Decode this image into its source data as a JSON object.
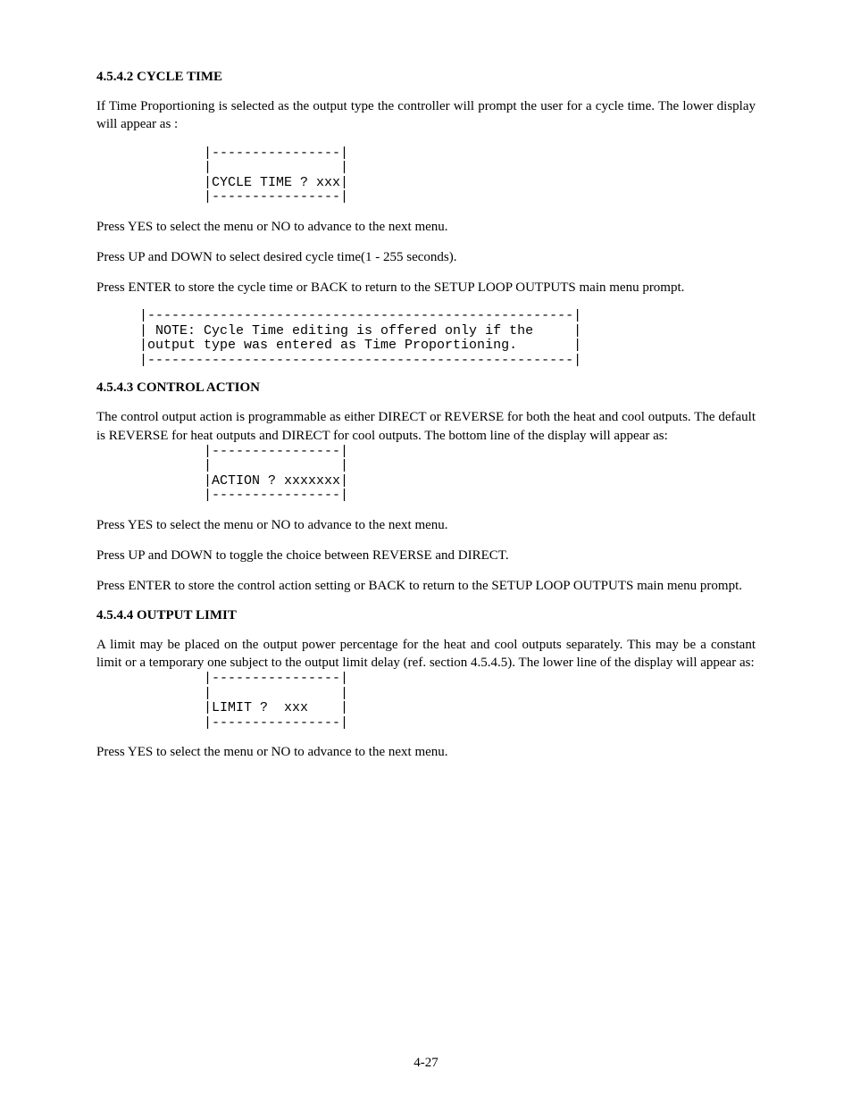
{
  "section1": {
    "heading": "4.5.4.2 CYCLE TIME",
    "para1": "If Time Proportioning is selected as the output type the controller will prompt the user for a cycle time. The lower display will appear as :",
    "display": "|----------------|\n|                |\n|CYCLE TIME ? xxx|\n|----------------|",
    "para2": "Press YES to select the menu or NO to advance to the next menu.",
    "para3": "Press UP and DOWN to select desired cycle time(1 - 255 seconds).",
    "para4": "Press ENTER to store the cycle time  or BACK to return to the SETUP LOOP OUTPUTS main menu prompt.",
    "note": "|-----------------------------------------------------|\n| NOTE: Cycle Time editing is offered only if the     |\n|output type was entered as Time Proportioning.       |\n|-----------------------------------------------------|"
  },
  "section2": {
    "heading": "4.5.4.3 CONTROL ACTION",
    "para1": "The control output action is programmable as either DIRECT or REVERSE for both the heat and cool outputs. The default is REVERSE for heat outputs and DIRECT for cool outputs. The bottom line of the display will appear as:",
    "display": "|----------------|\n|                |\n|ACTION ? xxxxxxx|\n|----------------|",
    "para2": "Press YES to select the menu or NO to advance to the next menu.",
    "para3": "Press UP and DOWN to toggle the choice between REVERSE and DIRECT.",
    "para4": "Press ENTER to store the control action setting  or BACK to return to the SETUP LOOP OUTPUTS main menu prompt."
  },
  "section3": {
    "heading": "4.5.4.4 OUTPUT LIMIT",
    "para1": "A limit may be placed on the output power percentage for the heat and cool outputs separately. This may be a constant limit or a temporary one subject to the output limit delay (ref. section 4.5.4.5). The lower line of the display will appear as:",
    "display": "|----------------|\n|                |\n|LIMIT ?  xxx    |\n|----------------|",
    "para2": "Press YES to select the menu or NO to advance to the next menu."
  },
  "pageNumber": "4-27"
}
